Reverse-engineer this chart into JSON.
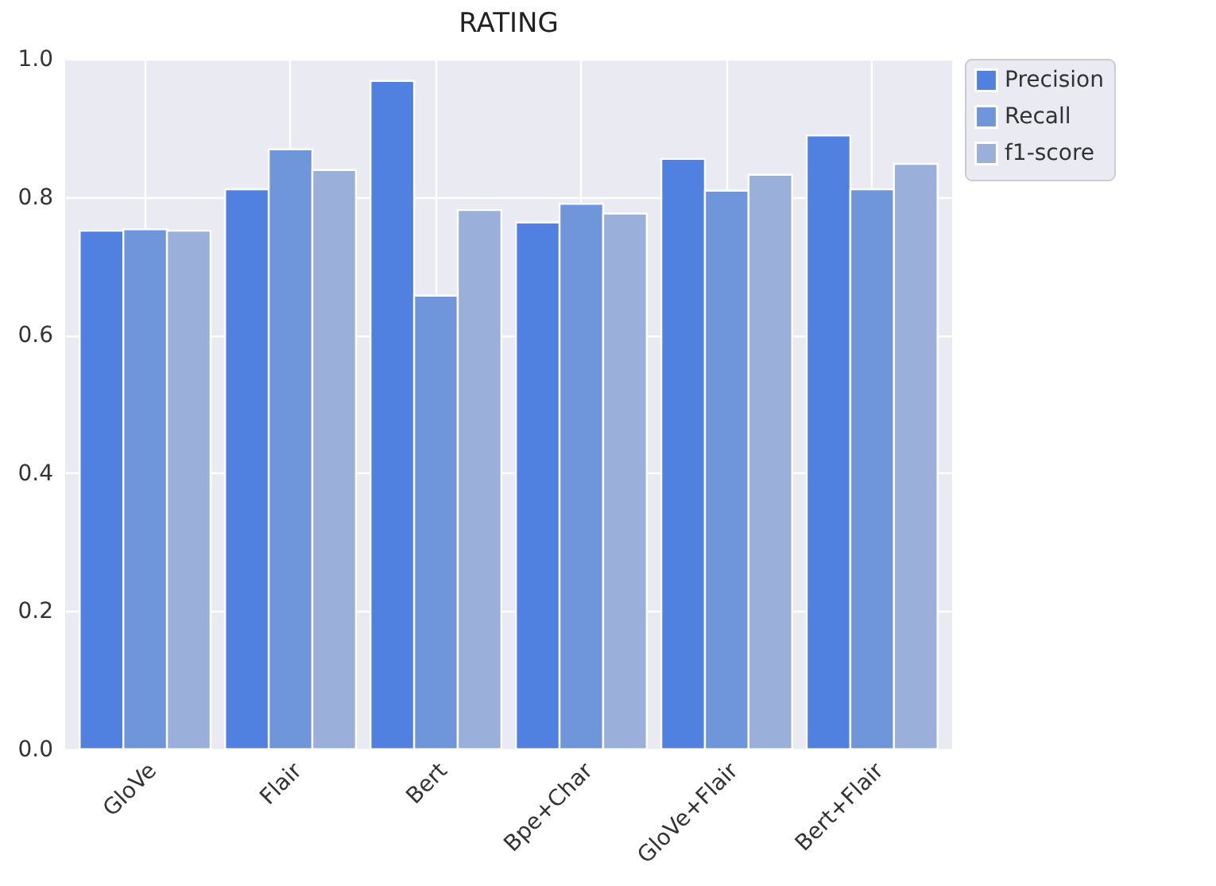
{
  "chart_data": {
    "type": "bar",
    "title": "RATING",
    "categories": [
      "GloVe",
      "Flair",
      "Bert",
      "Bpe+Char",
      "GloVe+Flair",
      "Bert+Flair"
    ],
    "series": [
      {
        "name": "Precision",
        "color": "#5181e0",
        "values": [
          0.751,
          0.811,
          0.968,
          0.763,
          0.855,
          0.889
        ]
      },
      {
        "name": "Recall",
        "color": "#6f95db",
        "values": [
          0.753,
          0.869,
          0.657,
          0.79,
          0.809,
          0.811
        ]
      },
      {
        "name": "f1-score",
        "color": "#9aafda",
        "values": [
          0.751,
          0.839,
          0.781,
          0.776,
          0.832,
          0.848
        ]
      }
    ],
    "ylim": [
      0,
      1
    ],
    "yticks": [
      {
        "value": 0,
        "label": "0.0"
      },
      0.2,
      0.4,
      0.6,
      0.8,
      {
        "value": 1,
        "label": "1.0"
      }
    ],
    "grid": true,
    "legend": "top right"
  }
}
